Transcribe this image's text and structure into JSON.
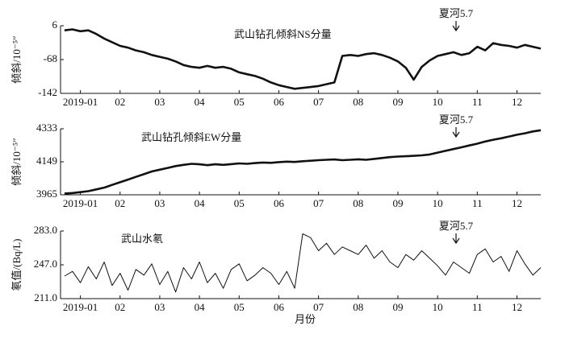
{
  "chart_data": [
    {
      "type": "line",
      "title": "武山钻孔倾斜NS分量",
      "y_label": "倾斜/10⁻⁵″",
      "annotation": "夏河5.7",
      "color": "#111111",
      "x": [
        0.6,
        0.8,
        1.0,
        1.2,
        1.4,
        1.6,
        1.8,
        2.0,
        2.2,
        2.4,
        2.6,
        2.8,
        3.0,
        3.2,
        3.4,
        3.6,
        3.8,
        4.0,
        4.2,
        4.4,
        4.6,
        4.8,
        5.0,
        5.2,
        5.4,
        5.6,
        5.8,
        6.0,
        6.2,
        6.4,
        6.6,
        6.8,
        7.0,
        7.2,
        7.4,
        7.6,
        7.8,
        8.0,
        8.2,
        8.4,
        8.6,
        8.8,
        9.0,
        9.2,
        9.4,
        9.6,
        9.8,
        10.0,
        10.2,
        10.4,
        10.6,
        10.8,
        11.0,
        11.2,
        11.4,
        11.6,
        11.8,
        12.0,
        12.2,
        12.4,
        12.6
      ],
      "values": [
        -4,
        -2,
        -6,
        -4,
        -12,
        -22,
        -30,
        -38,
        -42,
        -48,
        -52,
        -58,
        -62,
        -66,
        -72,
        -80,
        -84,
        -86,
        -82,
        -86,
        -84,
        -88,
        -96,
        -100,
        -104,
        -110,
        -118,
        -124,
        -128,
        -132,
        -130,
        -128,
        -126,
        -122,
        -118,
        -60,
        -58,
        -60,
        -56,
        -54,
        -58,
        -64,
        -72,
        -86,
        -112,
        -84,
        -70,
        -60,
        -56,
        -52,
        -58,
        -54,
        -40,
        -48,
        -32,
        -36,
        -38,
        -42,
        -36,
        -40,
        -44
      ],
      "xlim": [
        0.5,
        12.6
      ],
      "ylim": [
        -142,
        6
      ],
      "yticks": [
        6,
        -68,
        -142
      ],
      "xticks": [
        {
          "value": 1,
          "label": "2019-01"
        },
        {
          "value": 2,
          "label": "02"
        },
        {
          "value": 3,
          "label": "03"
        },
        {
          "value": 4,
          "label": "04"
        },
        {
          "value": 5,
          "label": "05"
        },
        {
          "value": 6,
          "label": "06"
        },
        {
          "value": 7,
          "label": "07"
        },
        {
          "value": 8,
          "label": "08"
        },
        {
          "value": 9,
          "label": "09"
        },
        {
          "value": 10,
          "label": "10"
        },
        {
          "value": 11,
          "label": "11"
        },
        {
          "value": 12,
          "label": "12"
        }
      ]
    },
    {
      "type": "line",
      "title": "武山钻孔倾斜EW分量",
      "y_label": "倾斜/10⁻⁵″",
      "annotation": "夏河5.7",
      "color": "#111111",
      "x": [
        0.6,
        0.8,
        1.0,
        1.2,
        1.4,
        1.6,
        1.8,
        2.0,
        2.2,
        2.4,
        2.6,
        2.8,
        3.0,
        3.2,
        3.4,
        3.6,
        3.8,
        4.0,
        4.2,
        4.4,
        4.6,
        4.8,
        5.0,
        5.2,
        5.4,
        5.6,
        5.8,
        6.0,
        6.2,
        6.4,
        6.6,
        6.8,
        7.0,
        7.2,
        7.4,
        7.6,
        7.8,
        8.0,
        8.2,
        8.4,
        8.6,
        8.8,
        9.0,
        9.2,
        9.4,
        9.6,
        9.8,
        10.0,
        10.2,
        10.4,
        10.6,
        10.8,
        11.0,
        11.2,
        11.4,
        11.6,
        11.8,
        12.0,
        12.2,
        12.4,
        12.6
      ],
      "values": [
        3972,
        3975,
        3980,
        3985,
        3995,
        4005,
        4020,
        4035,
        4050,
        4065,
        4080,
        4095,
        4105,
        4115,
        4125,
        4132,
        4138,
        4135,
        4130,
        4135,
        4132,
        4136,
        4140,
        4138,
        4142,
        4145,
        4143,
        4147,
        4150,
        4148,
        4152,
        4155,
        4158,
        4160,
        4162,
        4158,
        4160,
        4163,
        4160,
        4165,
        4170,
        4175,
        4178,
        4180,
        4182,
        4185,
        4190,
        4200,
        4210,
        4220,
        4230,
        4240,
        4250,
        4262,
        4272,
        4280,
        4290,
        4300,
        4308,
        4318,
        4325
      ],
      "xlim": [
        0.5,
        12.6
      ],
      "ylim": [
        3965,
        4333
      ],
      "yticks": [
        4333,
        4149,
        3965
      ],
      "xticks": [
        {
          "value": 1,
          "label": "2019-01"
        },
        {
          "value": 2,
          "label": "02"
        },
        {
          "value": 3,
          "label": "03"
        },
        {
          "value": 4,
          "label": "04"
        },
        {
          "value": 5,
          "label": "05"
        },
        {
          "value": 6,
          "label": "06"
        },
        {
          "value": 7,
          "label": "07"
        },
        {
          "value": 8,
          "label": "08"
        },
        {
          "value": 9,
          "label": "09"
        },
        {
          "value": 10,
          "label": "10"
        },
        {
          "value": 11,
          "label": "11"
        },
        {
          "value": 12,
          "label": "12"
        }
      ]
    },
    {
      "type": "line",
      "title": "武山水氡",
      "y_label": "氡值/(Bq/L)",
      "x_label": "月份",
      "annotation": "夏河5.7",
      "color": "#111111",
      "x": [
        0.6,
        0.8,
        1.0,
        1.2,
        1.4,
        1.6,
        1.8,
        2.0,
        2.2,
        2.4,
        2.6,
        2.8,
        3.0,
        3.2,
        3.4,
        3.6,
        3.8,
        4.0,
        4.2,
        4.4,
        4.6,
        4.8,
        5.0,
        5.2,
        5.4,
        5.6,
        5.8,
        6.0,
        6.2,
        6.4,
        6.6,
        6.8,
        7.0,
        7.2,
        7.4,
        7.6,
        7.8,
        8.0,
        8.2,
        8.4,
        8.6,
        8.8,
        9.0,
        9.2,
        9.4,
        9.6,
        9.8,
        10.0,
        10.2,
        10.4,
        10.6,
        10.8,
        11.0,
        11.2,
        11.4,
        11.6,
        11.8,
        12.0,
        12.2,
        12.4,
        12.6
      ],
      "values": [
        235,
        240,
        228,
        245,
        232,
        250,
        225,
        238,
        220,
        242,
        236,
        248,
        226,
        240,
        218,
        244,
        232,
        250,
        228,
        238,
        222,
        242,
        248,
        230,
        236,
        244,
        238,
        226,
        240,
        222,
        280,
        276,
        262,
        270,
        258,
        266,
        262,
        258,
        268,
        254,
        262,
        250,
        244,
        258,
        252,
        262,
        254,
        246,
        236,
        250,
        244,
        238,
        258,
        264,
        250,
        256,
        240,
        262,
        248,
        236,
        244
      ],
      "xlim": [
        0.5,
        12.6
      ],
      "ylim": [
        211,
        283
      ],
      "yticks": [
        {
          "value": 283,
          "label": "283.0"
        },
        {
          "value": 247,
          "label": "247.0"
        },
        {
          "value": 211,
          "label": "211.0"
        }
      ],
      "xticks": [
        {
          "value": 1,
          "label": "2019-01"
        },
        {
          "value": 2,
          "label": "02"
        },
        {
          "value": 3,
          "label": "03"
        },
        {
          "value": 4,
          "label": "04"
        },
        {
          "value": 5,
          "label": "05"
        },
        {
          "value": 6,
          "label": "06"
        },
        {
          "value": 7,
          "label": "07"
        },
        {
          "value": 8,
          "label": "08"
        },
        {
          "value": 9,
          "label": "09"
        },
        {
          "value": 10,
          "label": "10"
        },
        {
          "value": 11,
          "label": "11"
        },
        {
          "value": 12,
          "label": "12"
        }
      ]
    }
  ]
}
